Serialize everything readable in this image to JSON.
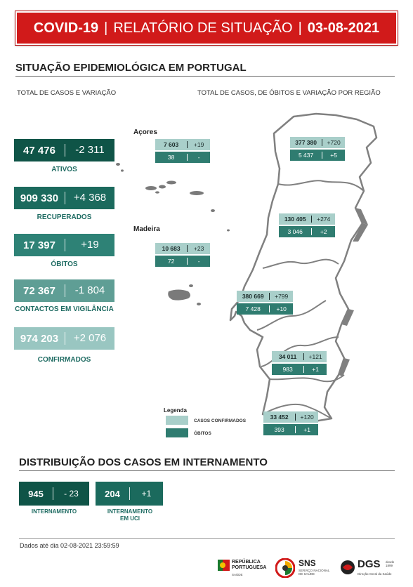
{
  "header": {
    "covid": "COVID-19",
    "separator": "|",
    "report": "RELATÓRIO DE SITUAÇÃO",
    "date": "03-08-2021"
  },
  "section1": {
    "title": "SITUAÇÃO EPIDEMIOLÓGICA EM PORTUGAL",
    "left_subtitle": "TOTAL DE CASOS E VARIAÇÃO",
    "right_subtitle": "TOTAL DE CASOS, DE ÓBITOS E VARIAÇÃO POR REGIÃO"
  },
  "stats": [
    {
      "value": "47 476",
      "delta": "-2 311",
      "label": "ATIVOS"
    },
    {
      "value": "909 330",
      "delta": "+4 368",
      "label": "RECUPERADOS"
    },
    {
      "value": "17 397",
      "delta": "+19",
      "label": "ÓBITOS"
    },
    {
      "value": "72 367",
      "delta": "-1 804",
      "label": "CONTACTOS EM VIGILÂNCIA"
    },
    {
      "value": "974 203",
      "delta": "+2 076",
      "label": "CONFIRMADOS"
    }
  ],
  "islands": {
    "azores_label": "Açores",
    "madeira_label": "Madeira"
  },
  "regions": [
    {
      "cases": "7 603",
      "cases_delta": "+19",
      "deaths": "38",
      "deaths_delta": "-"
    },
    {
      "cases": "10 683",
      "cases_delta": "+23",
      "deaths": "72",
      "deaths_delta": "-"
    },
    {
      "cases": "377 380",
      "cases_delta": "+720",
      "deaths": "5 437",
      "deaths_delta": "+5"
    },
    {
      "cases": "130 405",
      "cases_delta": "+274",
      "deaths": "3 046",
      "deaths_delta": "+2"
    },
    {
      "cases": "380 669",
      "cases_delta": "+799",
      "deaths": "7 428",
      "deaths_delta": "+10"
    },
    {
      "cases": "34 011",
      "cases_delta": "+121",
      "deaths": "983",
      "deaths_delta": "+1"
    },
    {
      "cases": "33 452",
      "cases_delta": "+120",
      "deaths": "393",
      "deaths_delta": "+1"
    }
  ],
  "legend": {
    "title": "Legenda",
    "confirmed": "CASOS CONFIRMADOS",
    "deaths": "ÓBITOS"
  },
  "section2": {
    "title": "DISTRIBUIÇÃO DOS CASOS EM INTERNAMENTO"
  },
  "internamento": [
    {
      "value": "945",
      "delta": "- 23",
      "label": "INTERNAMENTO"
    },
    {
      "value": "204",
      "delta": "+1",
      "label": "INTERNAMENTO EM UCI"
    }
  ],
  "footer": {
    "data_note": "Dados até dia 02-08-2021 23:59:59"
  },
  "logos": {
    "republica_line1": "REPÚBLICA",
    "republica_line2": "PORTUGUESA",
    "republica_line3": "SAÚDE",
    "sns": "SNS",
    "sns_sub1": "SERVIÇO NACIONAL",
    "sns_sub2": "DE SAÚDE",
    "dgs": "DGS",
    "dgs_since1": "desde",
    "dgs_since2": "1899",
    "dgs_sub": "Direção-Geral da Saúde"
  },
  "colors": {
    "banner_red": "#d11a1a",
    "ativos": "#0f5447",
    "recuperados": "#1b6a5d",
    "obitos": "#2e8276",
    "contactos": "#5f9e95",
    "confirmados": "#99c6c1",
    "map_cases": "#a9cfca",
    "map_deaths": "#2f7c70"
  }
}
